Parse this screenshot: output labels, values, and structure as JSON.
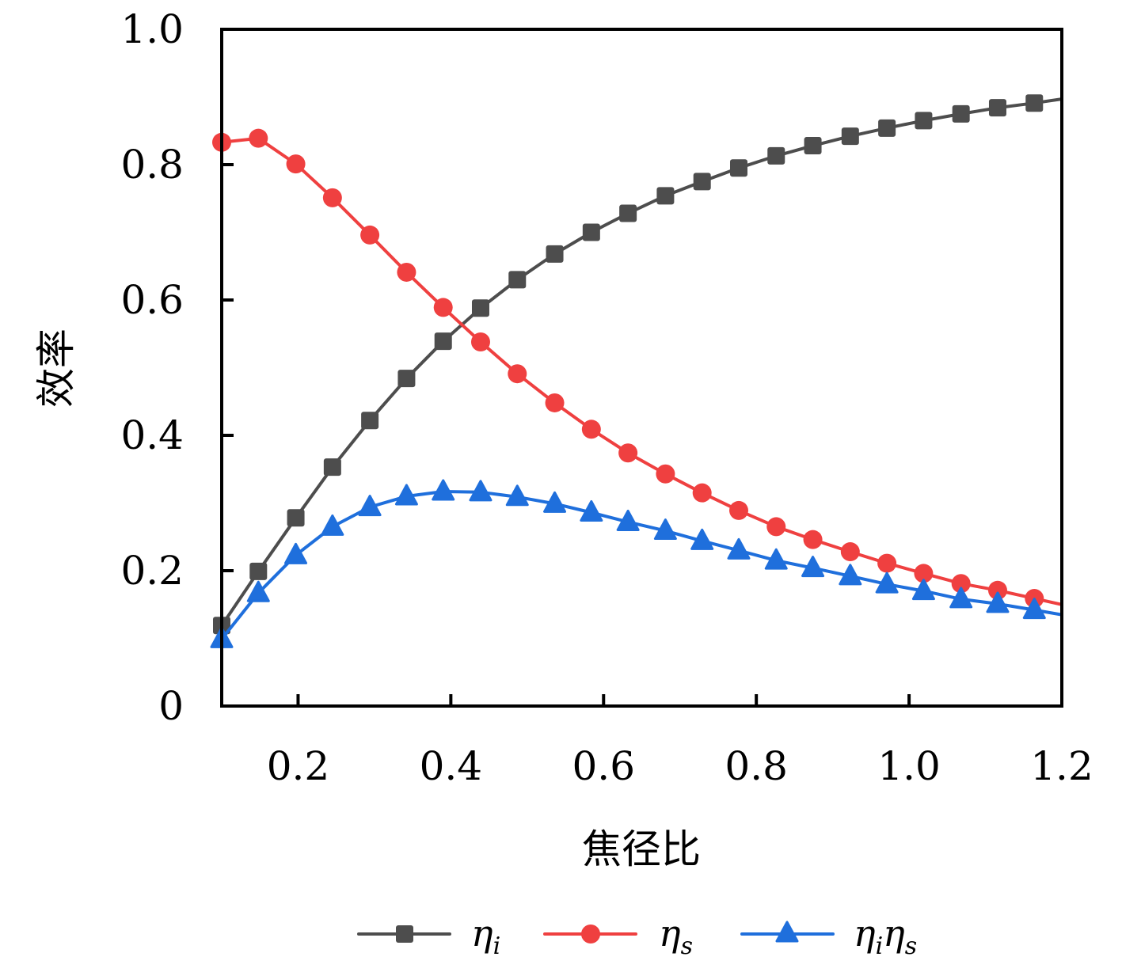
{
  "chart_data": {
    "type": "line",
    "title": "",
    "xlabel": "焦径比",
    "ylabel": "效率",
    "xlim": [
      0.1,
      1.2
    ],
    "ylim": [
      0,
      1.0
    ],
    "grid": false,
    "legend_position": "bottom-center",
    "x_ticks": [
      0.2,
      0.4,
      0.6,
      0.8,
      1.0,
      1.2
    ],
    "x_tick_labels": [
      "0.2",
      "0.4",
      "0.6",
      "0.8",
      "1.0",
      "1.2"
    ],
    "y_ticks": [
      0,
      0.2,
      0.4,
      0.6,
      0.8,
      1.0
    ],
    "y_tick_labels": [
      "0",
      "0.2",
      "0.4",
      "0.6",
      "0.8",
      "1.0"
    ],
    "x": [
      0.1,
      0.148,
      0.197,
      0.245,
      0.294,
      0.342,
      0.39,
      0.439,
      0.487,
      0.536,
      0.584,
      0.632,
      0.681,
      0.729,
      0.777,
      0.826,
      0.874,
      0.923,
      0.971,
      1.019,
      1.068,
      1.116,
      1.164,
      1.2
    ],
    "marker_count": 23,
    "series": [
      {
        "name": "η_i",
        "legend_main": "η",
        "legend_sub": "i",
        "color": "#4d4d4d",
        "marker": "square",
        "values": [
          0.119,
          0.199,
          0.278,
          0.353,
          0.422,
          0.484,
          0.539,
          0.588,
          0.63,
          0.668,
          0.7,
          0.728,
          0.754,
          0.775,
          0.795,
          0.813,
          0.828,
          0.842,
          0.854,
          0.865,
          0.875,
          0.884,
          0.891,
          0.897
        ]
      },
      {
        "name": "η_s",
        "legend_main": "η",
        "legend_sub": "s",
        "color": "#ef4040",
        "marker": "circle",
        "values": [
          0.833,
          0.839,
          0.801,
          0.751,
          0.696,
          0.641,
          0.589,
          0.538,
          0.491,
          0.448,
          0.409,
          0.374,
          0.343,
          0.315,
          0.289,
          0.265,
          0.246,
          0.228,
          0.211,
          0.196,
          0.181,
          0.171,
          0.159,
          0.15
        ]
      },
      {
        "name": "η_iη_s",
        "legend_main": "η",
        "legend_sub": "i",
        "legend_main2": "η",
        "legend_sub2": "s",
        "color": "#1f6fdc",
        "marker": "triangle",
        "values": [
          0.099,
          0.167,
          0.223,
          0.265,
          0.294,
          0.31,
          0.317,
          0.316,
          0.309,
          0.299,
          0.286,
          0.272,
          0.259,
          0.244,
          0.23,
          0.215,
          0.204,
          0.192,
          0.18,
          0.17,
          0.158,
          0.151,
          0.142,
          0.135
        ]
      }
    ]
  }
}
